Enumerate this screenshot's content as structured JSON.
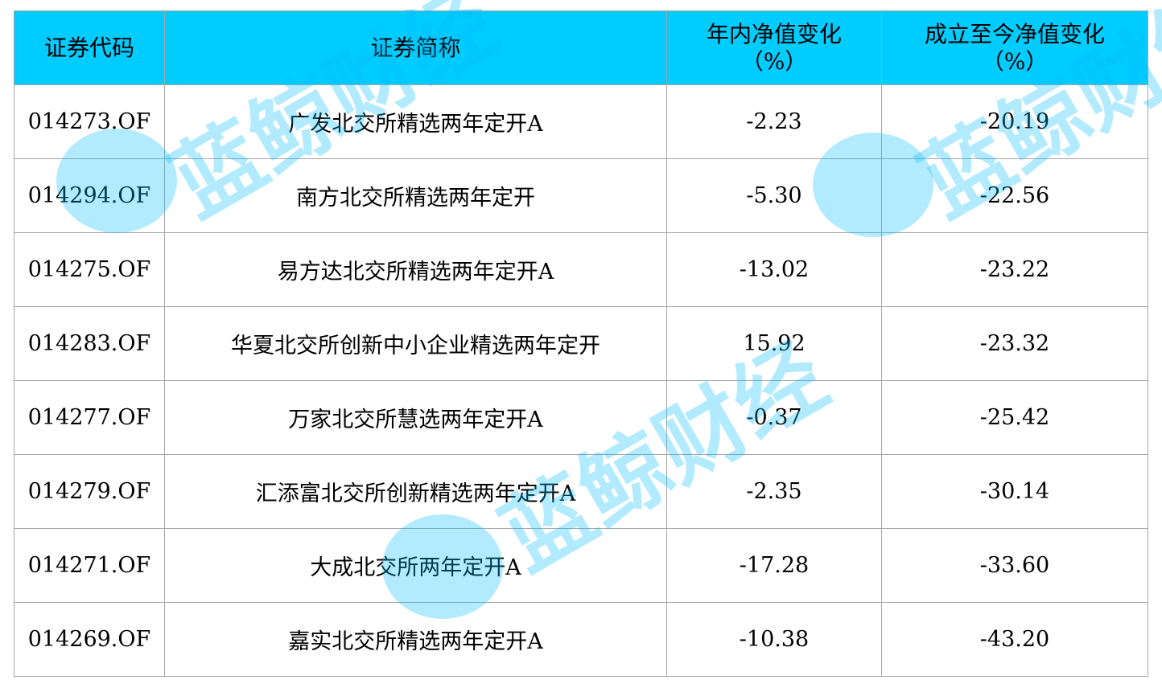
{
  "table": {
    "headers": [
      "证券代码",
      "证券简称",
      "年内净值变化\n（%）",
      "成立至今净值变化\n（%）"
    ],
    "rows": [
      [
        "014273.OF",
        "广发北交所精选两年定开A",
        "-2.23",
        "-20.19"
      ],
      [
        "014294.OF",
        "南方北交所精选两年定开",
        "-5.30",
        "-22.56"
      ],
      [
        "014275.OF",
        "易方达北交所精选两年定开A",
        "-13.02",
        "-23.22"
      ],
      [
        "014283.OF",
        "华夏北交所创新中小企业精选两年定开",
        "15.92",
        "-23.32"
      ],
      [
        "014277.OF",
        "万家北交所慧选两年定开A",
        "-0.37",
        "-25.42"
      ],
      [
        "014279.OF",
        "汇添富北交所创新精选两年定开A",
        "-2.35",
        "-30.14"
      ],
      [
        "014271.OF",
        "大成北交所两年定开A",
        "-17.28",
        "-33.60"
      ],
      [
        "014269.OF",
        "嘉实北交所精选两年定开A",
        "-10.38",
        "-43.20"
      ]
    ]
  },
  "watermark": {
    "text": "蓝鲸财经"
  },
  "colors": {
    "header_bg": "#00ccff",
    "border": "#a6a6a6",
    "watermark": "#00beff"
  }
}
